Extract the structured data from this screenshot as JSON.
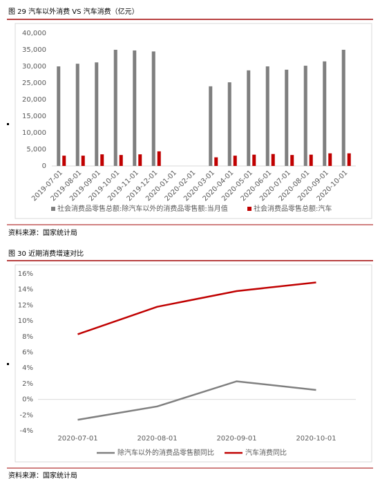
{
  "chart_data": [
    {
      "type": "bar",
      "title": "图 29 汽车以外消费 VS 汽车消费（亿元）",
      "source": "资料来源：国家统计局",
      "categories": [
        "2019-07-01",
        "2019-08-01",
        "2019-09-01",
        "2019-10-01",
        "2019-11-01",
        "2019-12-01",
        "2020-01-01",
        "2020-02-01",
        "2020-03-01",
        "2020-04-01",
        "2020-05-01",
        "2020-06-01",
        "2020-07-01",
        "2020-08-01",
        "2020-09-01",
        "2020-10-01"
      ],
      "series": [
        {
          "name": "社会消费品零售总额:除汽车以外的消费品零售额:当月值",
          "color": "#7f7f7f",
          "values": [
            30000,
            30800,
            31200,
            35000,
            34800,
            34500,
            null,
            null,
            24000,
            25200,
            28800,
            30000,
            29000,
            30200,
            31500,
            35000
          ]
        },
        {
          "name": "社会消费品零售总额:汽车",
          "color": "#c00000",
          "values": [
            3100,
            3100,
            3500,
            3300,
            3500,
            4400,
            null,
            null,
            2600,
            3100,
            3400,
            3600,
            3300,
            3400,
            3800,
            3800
          ]
        }
      ],
      "ylim": [
        0,
        40000
      ],
      "yticks": [
        0,
        {
          "value": 5000,
          "label": "5,000"
        },
        {
          "value": 10000,
          "label": "10,000"
        },
        {
          "value": 15000,
          "label": "15,000"
        },
        {
          "value": 20000,
          "label": "20,000"
        },
        {
          "value": 25000,
          "label": "25,000"
        },
        {
          "value": 30000,
          "label": "30,000"
        },
        {
          "value": 35000,
          "label": "35,000"
        },
        {
          "value": 40000,
          "label": "40,000"
        }
      ],
      "grid": false
    },
    {
      "type": "line",
      "title": "图 30 近期消费增速对比",
      "source": "资料来源：国家统计局",
      "categories": [
        "2020-07-01",
        "2020-08-01",
        "2020-09-01",
        "2020-10-01"
      ],
      "series": [
        {
          "name": "除汽车以外的消费品零售额同比",
          "color": "#7f7f7f",
          "values": [
            -2.6,
            -0.9,
            2.3,
            1.2
          ]
        },
        {
          "name": "汽车消费同比",
          "color": "#c00000",
          "values": [
            8.3,
            11.8,
            13.8,
            14.9
          ]
        }
      ],
      "ylim": [
        -4,
        16
      ],
      "yticks": [
        {
          "value": -4,
          "label": "-4%"
        },
        {
          "value": -2,
          "label": "-2%"
        },
        {
          "value": 0,
          "label": "0%"
        },
        {
          "value": 2,
          "label": "2%"
        },
        {
          "value": 4,
          "label": "4%"
        },
        {
          "value": 6,
          "label": "6%"
        },
        {
          "value": 8,
          "label": "8%"
        },
        {
          "value": 10,
          "label": "10%"
        },
        {
          "value": 12,
          "label": "12%"
        },
        {
          "value": 14,
          "label": "14%"
        },
        {
          "value": 16,
          "label": "16%"
        }
      ],
      "grid": false
    }
  ]
}
